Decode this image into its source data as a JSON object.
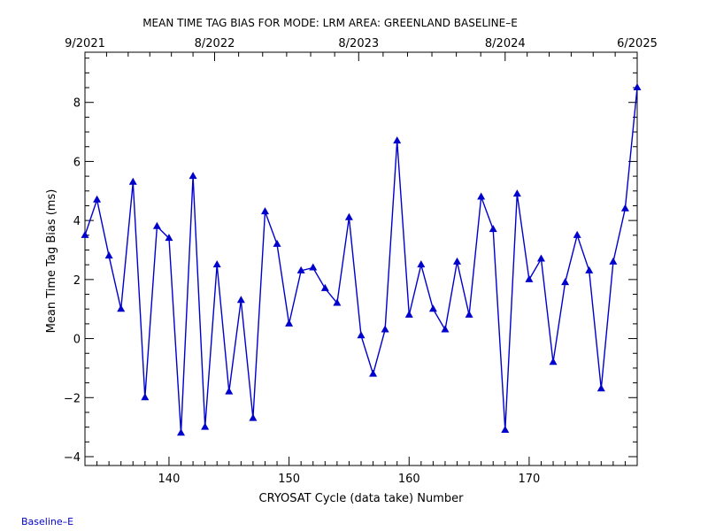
{
  "chart_data": {
    "type": "line",
    "title": "MEAN TIME TAG BIAS FOR MODE: LRM AREA: GREENLAND BASELINE–E",
    "xlabel": "CRYOSAT Cycle (data take) Number",
    "ylabel": "Mean Time Tag Bias (ms)",
    "xlim": [
      133,
      179
    ],
    "ylim": [
      -4.3,
      9.7
    ],
    "x_ticks": [
      "140",
      "150",
      "160",
      "170"
    ],
    "x_tick_values": [
      140,
      150,
      160,
      170
    ],
    "y_ticks": [
      "−4",
      "−2",
      "0",
      "2",
      "4",
      "6",
      "8"
    ],
    "y_tick_values": [
      -4,
      -2,
      0,
      2,
      4,
      6,
      8
    ],
    "top_axis_ticks": [
      "9/2021",
      "8/2022",
      "8/2023",
      "8/2024",
      "6/2025"
    ],
    "top_axis_positions": [
      133,
      143.8,
      155.8,
      168,
      179
    ],
    "grid": false,
    "line_color": "#0000cc",
    "marker": "triangle",
    "series": [
      {
        "x": [
          133,
          134,
          135,
          136,
          137,
          138,
          139,
          140,
          141,
          142,
          143,
          144,
          145,
          146,
          147,
          148,
          149,
          150,
          151,
          152,
          153,
          154,
          155,
          156,
          157,
          158,
          159,
          160,
          161,
          162,
          163,
          164,
          165,
          166,
          167,
          168,
          169,
          170,
          171,
          172,
          173,
          174,
          175,
          176,
          177,
          178,
          179
        ],
        "y": [
          3.5,
          4.7,
          2.8,
          1.0,
          5.3,
          -2.0,
          3.8,
          3.4,
          -3.2,
          5.5,
          -3.0,
          2.5,
          -1.8,
          1.3,
          -2.7,
          4.3,
          3.2,
          0.5,
          2.3,
          2.4,
          1.7,
          1.2,
          4.1,
          0.1,
          -1.2,
          0.3,
          6.7,
          0.8,
          2.5,
          1.0,
          0.3,
          2.6,
          0.8,
          4.8,
          3.7,
          -3.1,
          4.9,
          2.0,
          2.7,
          -0.8,
          1.9,
          3.5,
          2.3,
          -1.7,
          2.6,
          4.4,
          8.5
        ]
      }
    ]
  },
  "footer": {
    "label": "Baseline–E"
  }
}
